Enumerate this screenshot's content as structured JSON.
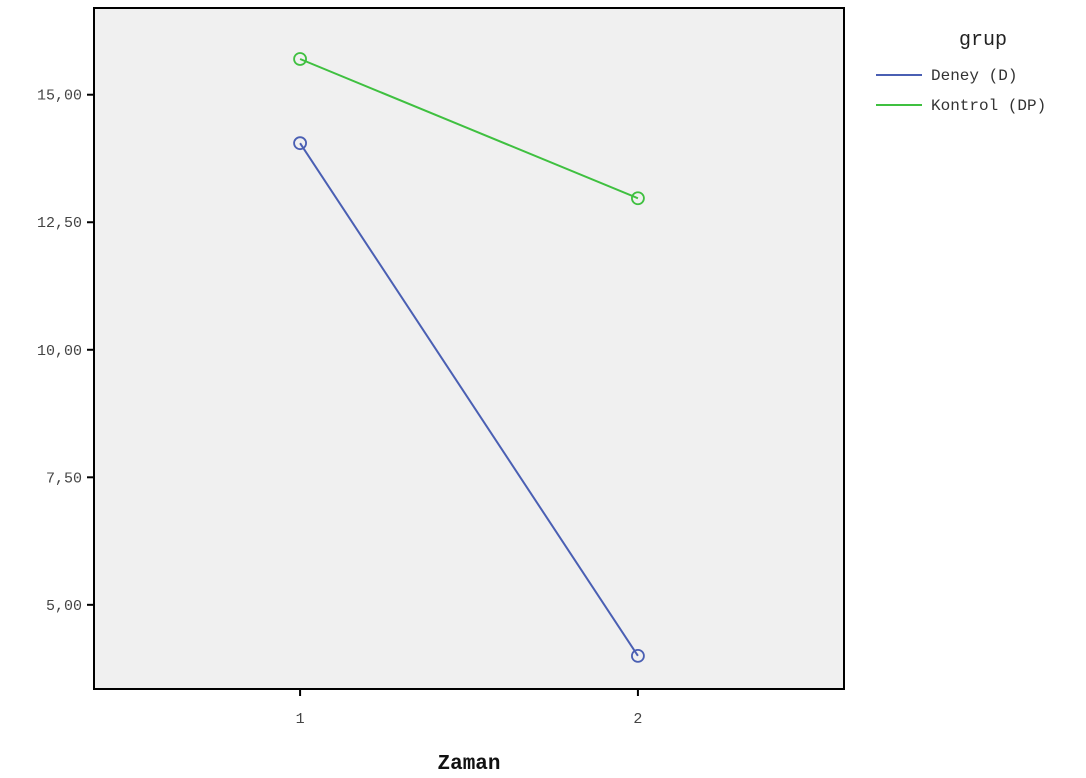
{
  "chart_data": {
    "type": "line",
    "title": "",
    "xlabel": "Zaman",
    "ylabel": "",
    "x": [
      1,
      2
    ],
    "xlim": [
      0.39,
      2.61
    ],
    "ylim": [
      3.35,
      16.7
    ],
    "x_tick_labels": [
      "1",
      "2"
    ],
    "y_ticks": [
      5.0,
      7.5,
      10.0,
      12.5,
      15.0
    ],
    "y_tick_labels": [
      "5,00",
      "7,50",
      "10,00",
      "12,50",
      "15,00"
    ],
    "grid": false,
    "plot_background": "#f0f0f0",
    "legend": {
      "title": "grup",
      "placement": "outside-top-right"
    },
    "series": [
      {
        "name": "Deney (D)",
        "color": "#4a5fb3",
        "marker": "open-circle",
        "values": [
          14.05,
          4.0
        ]
      },
      {
        "name": "Kontrol (DP)",
        "color": "#3fc040",
        "marker": "open-circle",
        "values": [
          15.7,
          12.97
        ]
      }
    ]
  }
}
